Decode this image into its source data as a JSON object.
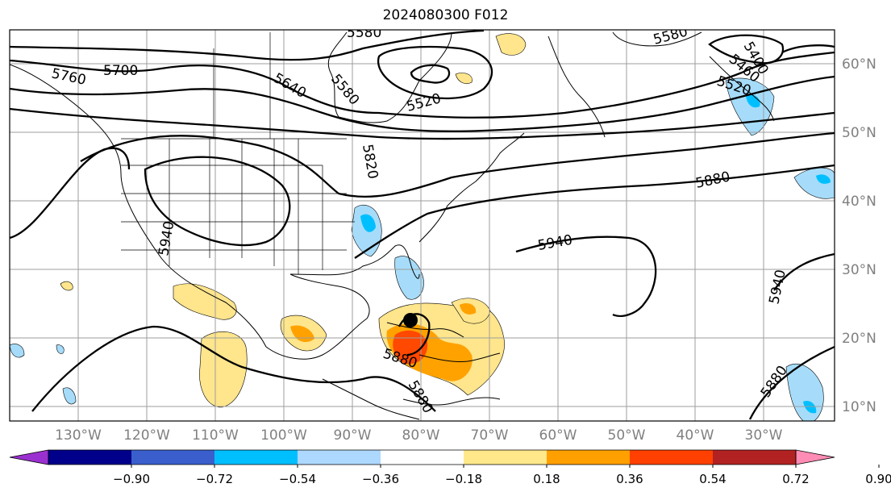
{
  "title": "2024080300 F012",
  "map": {
    "lon_labels": [
      "130°W",
      "120°W",
      "110°W",
      "100°W",
      "90°W",
      "80°W",
      "70°W",
      "60°W",
      "50°W",
      "40°W",
      "30°W"
    ],
    "lat_labels": [
      "60°N",
      "50°N",
      "40°N",
      "30°N",
      "20°N",
      "10°N"
    ],
    "contour_labels": [
      "5760",
      "5700",
      "5640",
      "5580",
      "5520",
      "5580",
      "5580",
      "5400",
      "5460",
      "5520",
      "5820",
      "5880",
      "5940",
      "5940",
      "5940",
      "5880",
      "5880",
      "5880"
    ],
    "storm_marker": "hurricane-center",
    "fill_colors": {
      "orange_light": "#ffe58c",
      "orange": "#ffa200",
      "red_orange": "#ff4800",
      "blue_light": "#a6dcfa",
      "blue": "#00bfff"
    }
  },
  "colorbar": {
    "colors": [
      "#9b30d0",
      "#00008b",
      "#3a5fcd",
      "#00bfff",
      "#add8ff",
      "#ffffff",
      "#ffe88a",
      "#ffa000",
      "#ff4000",
      "#b22222",
      "#ff8cb4"
    ],
    "tick_labels": [
      "−0.90",
      "−0.72",
      "−0.54",
      "−0.36",
      "−0.18",
      "0.18",
      "0.36",
      "0.54",
      "0.72",
      "0.90"
    ]
  }
}
